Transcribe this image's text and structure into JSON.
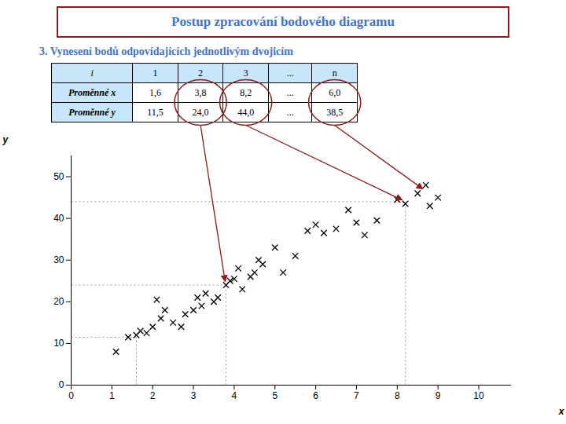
{
  "chart_data": {
    "type": "scatter",
    "title": "Postup zpracování bodového diagramu",
    "subtitle": "3. Vynesení bodů odpovídajících jednotlivým dvojicím",
    "x_label": "x",
    "y_label": "y",
    "x": [
      1.1,
      1.4,
      1.6,
      1.7,
      1.85,
      2.0,
      2.1,
      2.2,
      2.3,
      2.5,
      2.7,
      2.8,
      3.0,
      3.1,
      3.2,
      3.3,
      3.5,
      3.6,
      3.8,
      3.9,
      4.0,
      4.1,
      4.2,
      4.4,
      4.5,
      4.6,
      4.7,
      5.0,
      5.2,
      5.5,
      5.8,
      6.0,
      6.2,
      6.5,
      6.8,
      7.0,
      7.2,
      7.5,
      8.0,
      8.2,
      8.5,
      8.7,
      8.8,
      9.0
    ],
    "values": [
      8.0,
      11.5,
      12.0,
      13.0,
      12.5,
      14.0,
      20.5,
      16.0,
      18.0,
      15.0,
      14.0,
      17.0,
      18.0,
      21.0,
      19.0,
      22.0,
      20.0,
      21.0,
      24.0,
      25.0,
      25.5,
      28.0,
      23.0,
      26.0,
      27.0,
      30.0,
      29.0,
      33.0,
      27.0,
      31.0,
      37.0,
      38.5,
      36.5,
      37.5,
      42.0,
      39.0,
      36.0,
      39.5,
      44.5,
      43.5,
      46.0,
      48.0,
      43.0,
      45.0
    ],
    "color": "#000000",
    "marker": "x",
    "xlim": [
      0,
      10.8
    ],
    "ylim": [
      0,
      55
    ],
    "xticks": [
      0,
      1,
      2,
      3,
      4,
      5,
      6,
      7,
      8,
      9,
      10
    ],
    "yticks": [
      0,
      10,
      20,
      30,
      40,
      50
    ],
    "grid": false,
    "table": {
      "header": [
        "i",
        "1",
        "2",
        "3",
        "...",
        "n"
      ],
      "rows": [
        {
          "label": "Proměnné x",
          "values": [
            "1,6",
            "3,8",
            "8,2",
            "...",
            "6,0"
          ]
        },
        {
          "label": "Proměnné y",
          "values": [
            "11,5",
            "24,0",
            "44,0",
            "...",
            "38,5"
          ]
        }
      ]
    },
    "highlight_points": [
      {
        "x": 1.6,
        "y": 11.5
      },
      {
        "x": 3.8,
        "y": 24.0
      },
      {
        "x": 8.2,
        "y": 44.0
      }
    ],
    "arrows": [
      {
        "column": "2",
        "x": 3.8,
        "y": 24.0
      },
      {
        "column": "3",
        "x": 8.2,
        "y": 44.0
      },
      {
        "column": "n",
        "x": 8.7,
        "y": 46.5
      }
    ],
    "arrow_color": "#8B1A1A"
  }
}
